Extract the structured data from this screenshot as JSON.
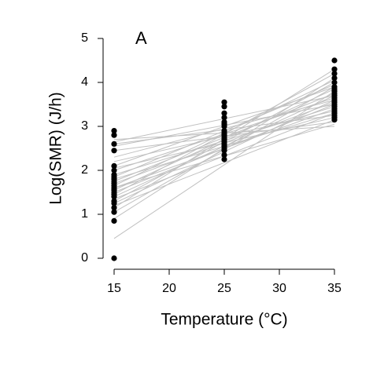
{
  "chart_data": {
    "type": "scatter",
    "title": "A",
    "xlabel": "Temperature (°C)",
    "ylabel": "Log(SMR) (J/h)",
    "xlim": [
      15,
      35
    ],
    "ylim": [
      0,
      5
    ],
    "xticks": [
      15,
      20,
      25,
      30,
      35
    ],
    "yticks": [
      0,
      1,
      2,
      3,
      4,
      5
    ],
    "series": [
      {
        "color": "#000000",
        "x": [
          15,
          15,
          15,
          15,
          15,
          15,
          15,
          15,
          15,
          15,
          15,
          15,
          15,
          15,
          15,
          15,
          15,
          15,
          15,
          15,
          15,
          15,
          15,
          25,
          25,
          25,
          25,
          25,
          25,
          25,
          25,
          25,
          25,
          25,
          25,
          25,
          25,
          25,
          25,
          25,
          25,
          25,
          35,
          35,
          35,
          35,
          35,
          35,
          35,
          35,
          35,
          35,
          35,
          35,
          35,
          35,
          35,
          35,
          35,
          35,
          35,
          35,
          35
        ],
        "values": [
          0,
          0.85,
          1.05,
          1.15,
          1.25,
          1.3,
          1.4,
          1.45,
          1.5,
          1.55,
          1.6,
          1.65,
          1.7,
          1.75,
          1.8,
          1.85,
          1.9,
          2.0,
          2.1,
          2.45,
          2.6,
          2.8,
          2.9,
          2.25,
          2.35,
          2.45,
          2.5,
          2.55,
          2.6,
          2.65,
          2.7,
          2.75,
          2.8,
          2.85,
          2.9,
          3.0,
          3.05,
          3.1,
          3.2,
          3.3,
          3.45,
          3.55,
          3.15,
          3.2,
          3.25,
          3.3,
          3.35,
          3.4,
          3.45,
          3.5,
          3.55,
          3.6,
          3.65,
          3.7,
          3.75,
          3.8,
          3.85,
          3.9,
          4.0,
          4.1,
          4.2,
          4.3,
          4.5
        ]
      }
    ],
    "fits": {
      "color": "#c0c0c0",
      "x": [
        15,
        35
      ],
      "lines": [
        [
          0.45,
          3.8
        ],
        [
          0.9,
          4.1
        ],
        [
          1.05,
          3.9
        ],
        [
          1.15,
          4.3
        ],
        [
          1.25,
          3.6
        ],
        [
          1.3,
          4.0
        ],
        [
          1.4,
          3.7
        ],
        [
          1.45,
          4.2
        ],
        [
          1.5,
          3.5
        ],
        [
          1.55,
          3.85
        ],
        [
          1.6,
          3.4
        ],
        [
          1.65,
          4.05
        ],
        [
          1.7,
          3.55
        ],
        [
          1.75,
          3.75
        ],
        [
          1.8,
          3.3
        ],
        [
          1.85,
          3.95
        ],
        [
          1.9,
          3.45
        ],
        [
          2.0,
          3.65
        ],
        [
          2.05,
          3.2
        ],
        [
          2.1,
          3.9
        ],
        [
          2.2,
          3.35
        ],
        [
          2.3,
          3.6
        ],
        [
          2.45,
          3.1
        ],
        [
          2.55,
          3.5
        ],
        [
          2.6,
          3.25
        ],
        [
          2.65,
          3.7
        ],
        [
          2.7,
          3.0
        ],
        [
          1.2,
          3.15
        ],
        [
          1.35,
          3.3
        ],
        [
          1.6,
          3.05
        ]
      ]
    }
  }
}
